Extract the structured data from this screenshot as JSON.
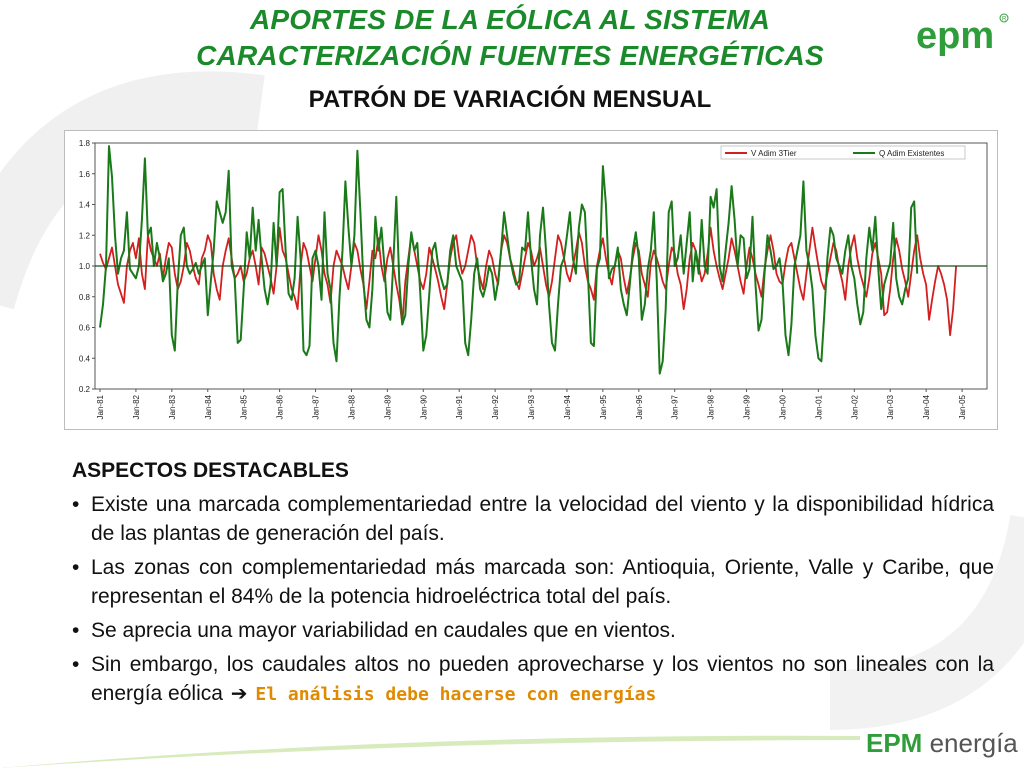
{
  "header": {
    "title_line1": "APORTES DE LA EÓLICA AL SISTEMA",
    "title_line2": "CARACTERIZACIÓN FUENTES ENERGÉTICAS",
    "subtitle": "PATRÓN DE VARIACIÓN MENSUAL"
  },
  "logos": {
    "top_text": "epm",
    "bottom_epm": "EPM",
    "bottom_energia": " energía"
  },
  "colors": {
    "title_green": "#1a8a2a",
    "series_wind": "#d41f1f",
    "series_hydro": "#1a7a1a",
    "highlight_orange": "#e08a00"
  },
  "chart_data": {
    "type": "line",
    "title": "",
    "xlabel": "",
    "ylabel": "",
    "ylim": [
      0.2,
      1.8
    ],
    "yticks": [
      "0.2",
      "0.4",
      "0.6",
      "0.8",
      "1.0",
      "1.2",
      "1.4",
      "1.6",
      "1.8"
    ],
    "xticks": [
      "Jan-81",
      "Jan-82",
      "Jan-83",
      "Jan-84",
      "Jan-85",
      "Jan-86",
      "Jan-87",
      "Jan-88",
      "Jan-89",
      "Jan-90",
      "Jan-91",
      "Jan-92",
      "Jan-93",
      "Jan-94",
      "Jan-95",
      "Jan-96",
      "Jan-97",
      "Jan-98",
      "Jan-99",
      "Jan-00",
      "Jan-01",
      "Jan-02",
      "Jan-03",
      "Jan-04",
      "Jan-05"
    ],
    "x_start": "Jan-81",
    "legend_position": "top-right",
    "reference_line": 1.0,
    "series": [
      {
        "name": "V Adim 3Tier",
        "color": "#d41f1f",
        "values": [
          1.08,
          1.02,
          0.98,
          1.05,
          1.12,
          1.0,
          0.88,
          0.82,
          0.76,
          1.0,
          1.1,
          1.15,
          1.05,
          1.18,
          0.95,
          0.85,
          1.2,
          1.1,
          1.05,
          1.0,
          1.08,
          0.92,
          1.05,
          1.15,
          1.12,
          0.95,
          0.85,
          0.9,
          1.0,
          1.15,
          1.1,
          1.0,
          0.92,
          0.88,
          1.05,
          1.1,
          1.2,
          1.15,
          0.95,
          0.85,
          0.78,
          1.0,
          1.1,
          1.18,
          1.05,
          0.92,
          0.95,
          1.0,
          0.9,
          0.95,
          1.05,
          1.1,
          1.0,
          0.88,
          1.12,
          1.08,
          1.0,
          0.92,
          0.82,
          1.0,
          1.25,
          1.1,
          1.05,
          0.95,
          0.85,
          0.8,
          0.72,
          1.0,
          1.15,
          1.1,
          1.0,
          0.9,
          1.05,
          1.2,
          1.1,
          0.95,
          0.88,
          0.76,
          1.0,
          1.1,
          1.05,
          1.0,
          0.92,
          0.85,
          1.0,
          1.15,
          1.1,
          0.98,
          0.88,
          0.72,
          0.9,
          1.1,
          1.05,
          1.18,
          1.0,
          0.9,
          1.05,
          1.12,
          1.0,
          0.88,
          0.78,
          0.62,
          0.9,
          1.05,
          1.2,
          1.1,
          1.0,
          0.9,
          0.85,
          0.95,
          1.12,
          1.05,
          0.98,
          0.9,
          0.8,
          0.72,
          0.88,
          1.05,
          1.15,
          1.2,
          1.05,
          0.95,
          1.0,
          1.1,
          1.2,
          1.15,
          1.0,
          0.92,
          0.85,
          1.0,
          1.1,
          1.05,
          0.95,
          0.88,
          1.1,
          1.2,
          1.15,
          1.05,
          0.98,
          0.9,
          0.85,
          0.95,
          1.05,
          1.15,
          1.1,
          1.0,
          1.05,
          1.12,
          1.0,
          0.88,
          0.8,
          0.9,
          1.05,
          1.2,
          1.15,
          1.05,
          0.95,
          0.9,
          1.0,
          1.1,
          1.22,
          1.15,
          1.0,
          0.9,
          0.85,
          0.78,
          1.0,
          1.1,
          1.18,
          1.05,
          0.95,
          0.88,
          1.0,
          1.1,
          1.05,
          0.92,
          0.82,
          0.92,
          1.05,
          1.15,
          1.1,
          0.95,
          0.88,
          0.8,
          1.02,
          1.1,
          1.05,
          0.98,
          0.9,
          0.85,
          1.0,
          1.12,
          1.08,
          0.95,
          0.88,
          0.72,
          0.85,
          1.05,
          1.15,
          1.1,
          1.0,
          0.9,
          0.95,
          1.08,
          1.25,
          1.1,
          1.0,
          0.92,
          0.85,
          0.95,
          1.05,
          1.18,
          1.1,
          1.0,
          0.9,
          0.82,
          1.0,
          1.12,
          1.05,
          0.95,
          0.88,
          0.8,
          0.98,
          1.1,
          1.2,
          1.1,
          0.95,
          0.9,
          0.88,
          1.02,
          1.12,
          1.15,
          1.05,
          0.95,
          0.85,
          0.78,
          0.95,
          1.1,
          1.25,
          1.12,
          1.0,
          0.9,
          0.85,
          0.95,
          1.05,
          1.15,
          1.1,
          0.98,
          0.9,
          0.78,
          1.0,
          1.12,
          1.2,
          1.05,
          0.95,
          0.88,
          0.8,
          0.92,
          1.08,
          1.15,
          1.05,
          0.95,
          0.68,
          0.7,
          0.85,
          1.05,
          1.18,
          1.1,
          0.98,
          0.9,
          0.8,
          0.95,
          1.1,
          1.2,
          1.05,
          0.95,
          0.88,
          0.65,
          0.78,
          0.9,
          1.0,
          0.95,
          0.88,
          0.78,
          0.55,
          0.72,
          1.0
        ]
      },
      {
        "name": "Q Adim Existentes",
        "color": "#1a7a1a",
        "values": [
          0.6,
          0.75,
          1.0,
          1.78,
          1.58,
          1.2,
          0.95,
          1.05,
          1.1,
          1.35,
          0.98,
          0.95,
          0.92,
          1.0,
          1.3,
          1.7,
          1.2,
          1.25,
          1.0,
          1.15,
          1.05,
          0.9,
          0.95,
          1.05,
          0.55,
          0.45,
          0.9,
          1.2,
          1.25,
          1.0,
          0.95,
          0.98,
          1.02,
          0.95,
          1.0,
          1.05,
          0.68,
          0.9,
          1.1,
          1.42,
          1.35,
          1.28,
          1.35,
          1.62,
          1.0,
          0.92,
          0.5,
          0.52,
          0.85,
          1.22,
          1.05,
          1.38,
          1.1,
          1.3,
          1.05,
          0.85,
          0.75,
          0.88,
          1.28,
          1.0,
          1.48,
          1.5,
          1.1,
          0.82,
          0.78,
          0.92,
          1.32,
          1.05,
          0.45,
          0.42,
          0.48,
          1.05,
          1.1,
          1.0,
          0.78,
          1.35,
          0.95,
          0.85,
          0.5,
          0.38,
          0.8,
          1.1,
          1.55,
          1.25,
          1.0,
          1.2,
          1.75,
          1.35,
          0.9,
          0.65,
          0.6,
          0.85,
          1.32,
          1.1,
          1.25,
          1.0,
          0.7,
          0.65,
          1.02,
          1.45,
          0.9,
          0.62,
          0.68,
          1.0,
          1.22,
          1.1,
          1.15,
          0.82,
          0.45,
          0.55,
          0.82,
          1.1,
          1.15,
          1.0,
          0.92,
          0.85,
          0.88,
          1.1,
          1.2,
          1.0,
          0.95,
          0.9,
          0.5,
          0.42,
          0.65,
          0.95,
          1.05,
          0.85,
          0.8,
          0.88,
          1.0,
          0.95,
          0.78,
          0.9,
          1.1,
          1.35,
          1.2,
          1.05,
          0.95,
          0.88,
          0.9,
          1.12,
          1.1,
          1.35,
          1.05,
          0.85,
          0.75,
          1.2,
          1.38,
          1.1,
          0.75,
          0.5,
          0.45,
          0.75,
          1.0,
          1.05,
          1.2,
          1.35,
          1.05,
          0.95,
          1.25,
          1.4,
          1.35,
          0.95,
          0.5,
          0.48,
          0.98,
          1.05,
          1.65,
          1.4,
          0.92,
          0.98,
          1.0,
          1.12,
          0.85,
          0.75,
          0.68,
          0.88,
          1.1,
          1.22,
          1.05,
          0.65,
          0.75,
          0.98,
          1.1,
          1.35,
          0.9,
          0.3,
          0.38,
          0.72,
          1.35,
          1.42,
          1.0,
          1.05,
          1.2,
          0.95,
          1.15,
          1.35,
          0.9,
          1.1,
          0.95,
          1.3,
          1.0,
          0.95,
          1.45,
          1.38,
          1.5,
          1.0,
          0.9,
          1.1,
          1.28,
          1.52,
          1.3,
          1.0,
          1.2,
          1.18,
          0.92,
          0.98,
          1.32,
          0.88,
          0.58,
          0.65,
          0.95,
          1.2,
          1.1,
          0.98,
          1.0,
          1.05,
          0.9,
          0.55,
          0.42,
          0.62,
          1.0,
          1.1,
          1.2,
          1.55,
          1.1,
          1.0,
          0.85,
          0.55,
          0.4,
          0.38,
          0.7,
          1.05,
          1.25,
          1.2,
          1.05,
          1.0,
          0.95,
          1.1,
          1.2,
          1.0,
          0.92,
          0.75,
          0.62,
          0.7,
          1.05,
          1.25,
          1.1,
          1.32,
          0.98,
          0.72,
          0.88,
          0.95,
          1.02,
          1.28,
          0.92,
          0.8,
          0.75,
          0.85,
          0.92,
          1.38,
          1.42,
          0.95
        ]
      }
    ]
  },
  "content": {
    "section_title": "ASPECTOS DESTACABLES",
    "bullet_marker": "•",
    "bullets": [
      "Existe una marcada complementariedad entre la velocidad del viento y la disponibilidad hídrica de las plantas de generación del país.",
      "Las zonas con complementariedad más marcada son: Antioquia, Oriente, Valle y Caribe, que representan el 84% de la potencia hidroeléctrica total del país.",
      "Se aprecia una mayor variabilidad en caudales que en vientos."
    ],
    "last_bullet_text": "Sin embargo, los caudales altos no pueden aprovecharse y los vientos no son lineales con la energía eólica",
    "last_bullet_arrow": "➔",
    "last_bullet_highlight": "El análisis debe hacerse con energías"
  }
}
